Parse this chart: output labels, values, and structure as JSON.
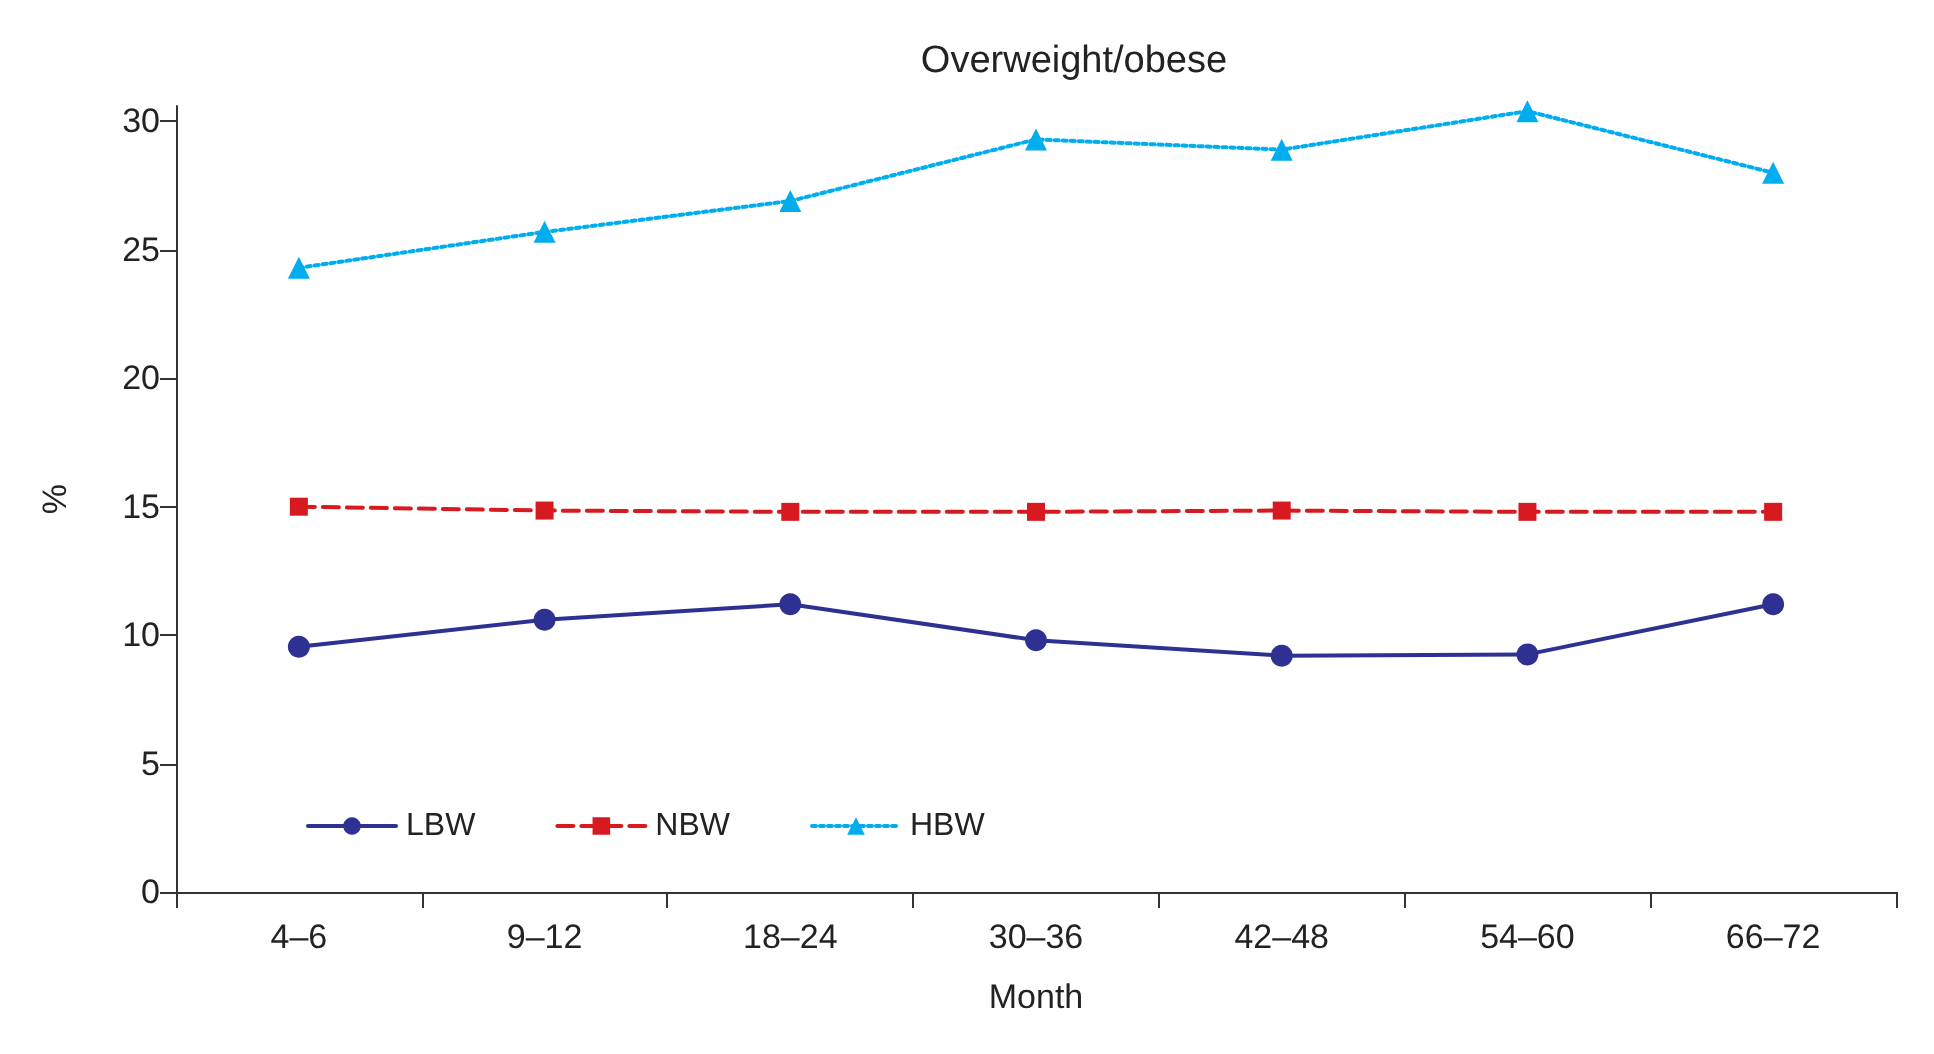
{
  "chart_data": {
    "type": "line",
    "title": "Overweight/obese",
    "xlabel": "Month",
    "ylabel": "%",
    "categories": [
      "4–6",
      "9–12",
      "18–24",
      "30–36",
      "42–48",
      "54–60",
      "66–72"
    ],
    "series": [
      {
        "name": "LBW",
        "color": "#2e3192",
        "marker": "circle",
        "line_style": "solid",
        "values": [
          9.55,
          10.6,
          11.2,
          9.8,
          9.2,
          9.25,
          11.2
        ]
      },
      {
        "name": "NBW",
        "color": "#d71920",
        "marker": "square",
        "line_style": "dashed",
        "values": [
          15.0,
          14.85,
          14.8,
          14.8,
          14.85,
          14.8,
          14.8
        ]
      },
      {
        "name": "HBW",
        "color": "#00aeef",
        "marker": "triangle",
        "line_style": "dotted",
        "values": [
          24.3,
          25.7,
          26.9,
          29.3,
          28.9,
          30.4,
          28.0
        ]
      }
    ],
    "ylim": [
      0,
      30.6
    ],
    "yticks": [
      0,
      5,
      10,
      15,
      20,
      25,
      30
    ],
    "grid": false,
    "legend": "bottom left"
  }
}
